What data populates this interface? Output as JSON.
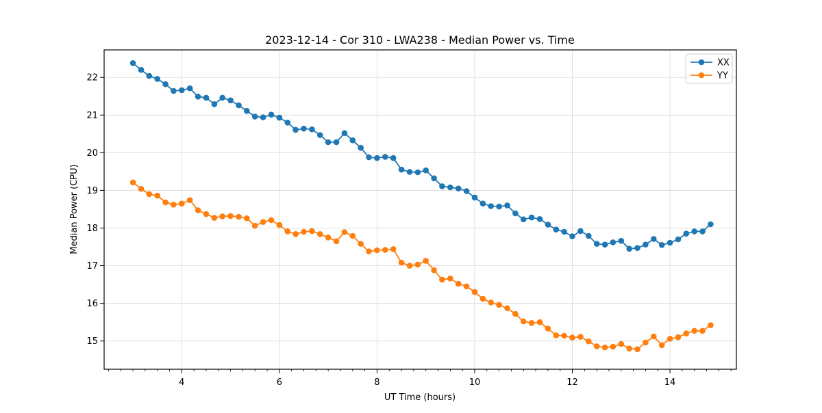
{
  "figure": {
    "title": "2023-12-14 - Cor 310 - LWA238 - Median Power vs. Time",
    "xlabel": "UT Time (hours)",
    "ylabel": "Median Power (CPU)",
    "background": "#ffffff",
    "grid_color": "#dcdcdc",
    "spine_color": "#000000",
    "tick_color": "#000000"
  },
  "legend": {
    "position": "upper right",
    "entries": [
      {
        "label": "XX",
        "color": "#1f77b4"
      },
      {
        "label": "YY",
        "color": "#ff7f0e"
      }
    ]
  },
  "chart_data": {
    "type": "line",
    "title": "2023-12-14 - Cor 310 - LWA238 - Median Power vs. Time",
    "xlabel": "UT Time (hours)",
    "ylabel": "Median Power (CPU)",
    "xlim": [
      2.41,
      15.36
    ],
    "ylim": [
      14.25,
      22.73
    ],
    "x_major_ticks": [
      4,
      6,
      8,
      10,
      12,
      14
    ],
    "x_minor_step": 0.25,
    "y_ticks": [
      15,
      16,
      17,
      18,
      19,
      20,
      21,
      22
    ],
    "grid": true,
    "marker": "o",
    "legend_position": "upper right",
    "x": [
      3.0,
      3.167,
      3.333,
      3.5,
      3.667,
      3.833,
      4.0,
      4.167,
      4.333,
      4.5,
      4.667,
      4.833,
      5.0,
      5.167,
      5.333,
      5.5,
      5.667,
      5.833,
      6.0,
      6.167,
      6.333,
      6.5,
      6.667,
      6.833,
      7.0,
      7.167,
      7.333,
      7.5,
      7.667,
      7.833,
      8.0,
      8.167,
      8.333,
      8.5,
      8.667,
      8.833,
      9.0,
      9.167,
      9.333,
      9.5,
      9.667,
      9.833,
      10.0,
      10.167,
      10.333,
      10.5,
      10.667,
      10.833,
      11.0,
      11.167,
      11.333,
      11.5,
      11.667,
      11.833,
      12.0,
      12.167,
      12.333,
      12.5,
      12.667,
      12.833,
      13.0,
      13.167,
      13.333,
      13.5,
      13.667,
      13.833,
      14.0,
      14.167,
      14.333,
      14.5,
      14.667,
      14.833
    ],
    "series": [
      {
        "name": "XX",
        "color": "#1f77b4",
        "values": [
          22.38,
          22.2,
          22.04,
          21.96,
          21.82,
          21.64,
          21.66,
          21.71,
          21.49,
          21.46,
          21.29,
          21.46,
          21.39,
          21.26,
          21.11,
          20.96,
          20.94,
          21.01,
          20.93,
          20.8,
          20.61,
          20.64,
          20.62,
          20.47,
          20.28,
          20.28,
          20.52,
          20.33,
          20.13,
          19.88,
          19.86,
          19.89,
          19.86,
          19.55,
          19.49,
          19.48,
          19.53,
          19.32,
          19.11,
          19.08,
          19.05,
          18.98,
          18.81,
          18.65,
          18.58,
          18.57,
          18.6,
          18.39,
          18.23,
          18.28,
          18.24,
          18.09,
          17.96,
          17.9,
          17.78,
          17.92,
          17.79,
          17.58,
          17.56,
          17.62,
          17.66,
          17.45,
          17.47,
          17.56,
          17.71,
          17.55,
          17.61,
          17.7,
          17.85,
          17.91,
          17.91,
          18.1
        ]
      },
      {
        "name": "YY",
        "color": "#ff7f0e",
        "values": [
          19.21,
          19.04,
          18.9,
          18.86,
          18.68,
          18.62,
          18.65,
          18.74,
          18.47,
          18.37,
          18.27,
          18.31,
          18.32,
          18.3,
          18.26,
          18.06,
          18.16,
          18.21,
          18.08,
          17.91,
          17.84,
          17.9,
          17.92,
          17.84,
          17.75,
          17.65,
          17.89,
          17.79,
          17.58,
          17.38,
          17.41,
          17.42,
          17.44,
          17.08,
          17.0,
          17.03,
          17.13,
          16.88,
          16.63,
          16.66,
          16.52,
          16.45,
          16.3,
          16.12,
          16.02,
          15.96,
          15.87,
          15.72,
          15.52,
          15.48,
          15.5,
          15.33,
          15.15,
          15.14,
          15.09,
          15.11,
          14.99,
          14.86,
          14.83,
          14.85,
          14.92,
          14.8,
          14.78,
          14.96,
          15.12,
          14.89,
          15.06,
          15.1,
          15.2,
          15.27,
          15.27,
          15.42
        ]
      }
    ]
  }
}
